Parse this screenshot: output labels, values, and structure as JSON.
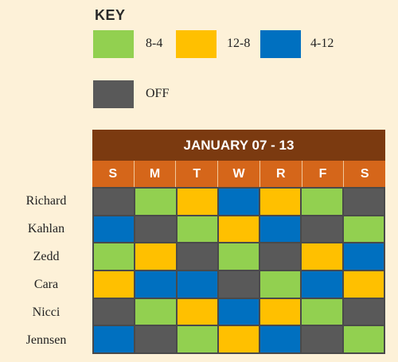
{
  "key": {
    "title": "KEY",
    "items": [
      {
        "label": "8-4",
        "color": "#92d050"
      },
      {
        "label": "12-8",
        "color": "#ffc000"
      },
      {
        "label": "4-12",
        "color": "#0070c0"
      },
      {
        "label": "OFF",
        "color": "#595959"
      }
    ]
  },
  "schedule": {
    "title": "JANUARY 07 - 13",
    "days": [
      "S",
      "M",
      "T",
      "W",
      "R",
      "F",
      "S"
    ],
    "rows": [
      {
        "name": "Richard",
        "shifts": [
          "OFF",
          "8-4",
          "12-8",
          "4-12",
          "12-8",
          "8-4",
          "OFF"
        ]
      },
      {
        "name": "Kahlan",
        "shifts": [
          "4-12",
          "OFF",
          "8-4",
          "12-8",
          "4-12",
          "OFF",
          "8-4"
        ]
      },
      {
        "name": "Zedd",
        "shifts": [
          "8-4",
          "12-8",
          "OFF",
          "8-4",
          "OFF",
          "12-8",
          "4-12"
        ]
      },
      {
        "name": "Cara",
        "shifts": [
          "12-8",
          "4-12",
          "4-12",
          "OFF",
          "8-4",
          "4-12",
          "12-8"
        ]
      },
      {
        "name": "Nicci",
        "shifts": [
          "OFF",
          "8-4",
          "12-8",
          "4-12",
          "12-8",
          "8-4",
          "OFF"
        ]
      },
      {
        "name": "Jennsen",
        "shifts": [
          "4-12",
          "OFF",
          "8-4",
          "12-8",
          "4-12",
          "OFF",
          "8-4"
        ]
      }
    ]
  }
}
